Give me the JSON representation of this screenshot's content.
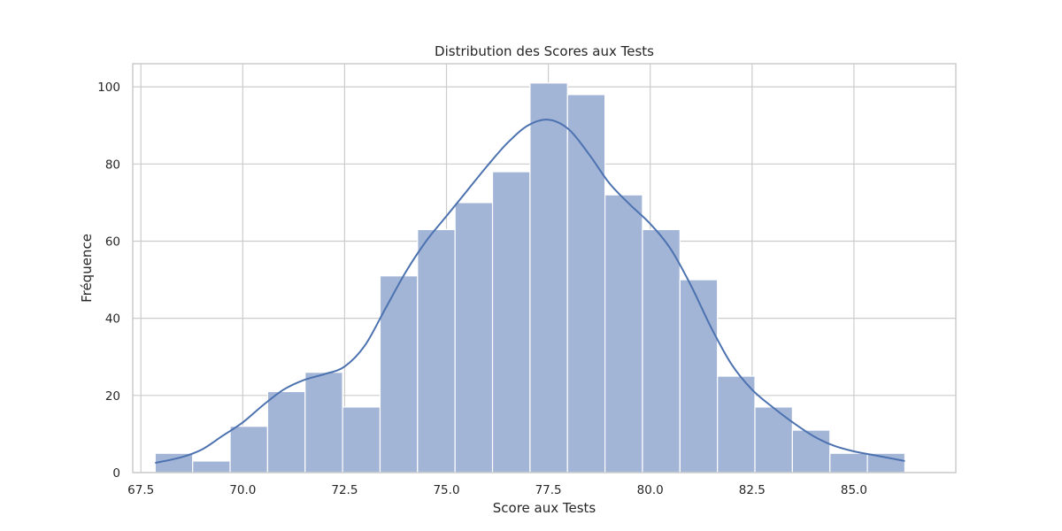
{
  "chart_data": {
    "type": "bar",
    "title": "Distribution des Scores aux Tests",
    "xlabel": "Score aux Tests",
    "ylabel": "Fréquence",
    "xlim": [
      67.3,
      87.5
    ],
    "ylim": [
      0,
      106
    ],
    "x_ticks": [
      67.5,
      70.0,
      72.5,
      75.0,
      77.5,
      80.0,
      82.5,
      85.0
    ],
    "x_tick_labels": [
      "67.5",
      "70.0",
      "72.5",
      "75.0",
      "77.5",
      "80.0",
      "82.5",
      "85.0"
    ],
    "y_ticks": [
      0,
      20,
      40,
      60,
      80,
      100
    ],
    "y_tick_labels": [
      "0",
      "20",
      "40",
      "60",
      "80",
      "100"
    ],
    "grid": true,
    "bin_start": 67.85,
    "bin_width": 0.92,
    "values": [
      5,
      3,
      12,
      21,
      26,
      17,
      51,
      63,
      70,
      78,
      101,
      98,
      72,
      63,
      50,
      25,
      17,
      11,
      5,
      5
    ],
    "kde": {
      "x": [
        67.85,
        68.5,
        69.0,
        69.5,
        70.0,
        70.5,
        71.0,
        71.5,
        72.0,
        72.5,
        73.0,
        73.5,
        74.0,
        74.5,
        75.0,
        75.5,
        76.0,
        76.5,
        77.0,
        77.5,
        78.0,
        78.5,
        79.0,
        79.5,
        80.0,
        80.5,
        81.0,
        81.5,
        82.0,
        82.5,
        83.0,
        83.5,
        84.0,
        84.5,
        85.0,
        85.5,
        86.25
      ],
      "y": [
        2.5,
        4.0,
        6.0,
        9.5,
        13.0,
        17.5,
        21.5,
        24.0,
        25.5,
        27.5,
        33.0,
        42.5,
        52.0,
        60.0,
        66.5,
        73.0,
        79.5,
        85.5,
        90.0,
        91.5,
        89.0,
        82.5,
        75.0,
        69.5,
        64.5,
        58.0,
        48.5,
        37.5,
        28.0,
        21.5,
        17.0,
        13.0,
        9.5,
        7.0,
        5.5,
        4.5,
        3.0
      ]
    },
    "colors": {
      "bar_fill": "#a3b5d7",
      "bar_edge": "#ffffff",
      "kde_line": "#4c72b0",
      "grid": "#cccccc",
      "frame": "#cccccc"
    }
  }
}
